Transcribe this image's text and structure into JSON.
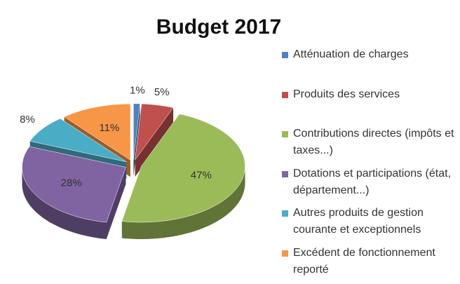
{
  "chart_data": {
    "type": "pie",
    "title": "Budget 2017",
    "categories": [
      "Atténuation de charges",
      "Produits des services",
      "Contributions directes (impôts et taxes...)",
      "Dotations et participations (état, département...)",
      "Autres produits de gestion courante et exceptionnels",
      "Excédent de fonctionnement reporté"
    ],
    "values": [
      1,
      5,
      47,
      28,
      8,
      11
    ],
    "value_labels": [
      "1%",
      "5%",
      "47%",
      "28%",
      "8%",
      "11%"
    ],
    "colors": [
      "#4f81bd",
      "#c0504d",
      "#9bbb59",
      "#8064a2",
      "#4bacc6",
      "#f79646"
    ],
    "legend": "right"
  }
}
